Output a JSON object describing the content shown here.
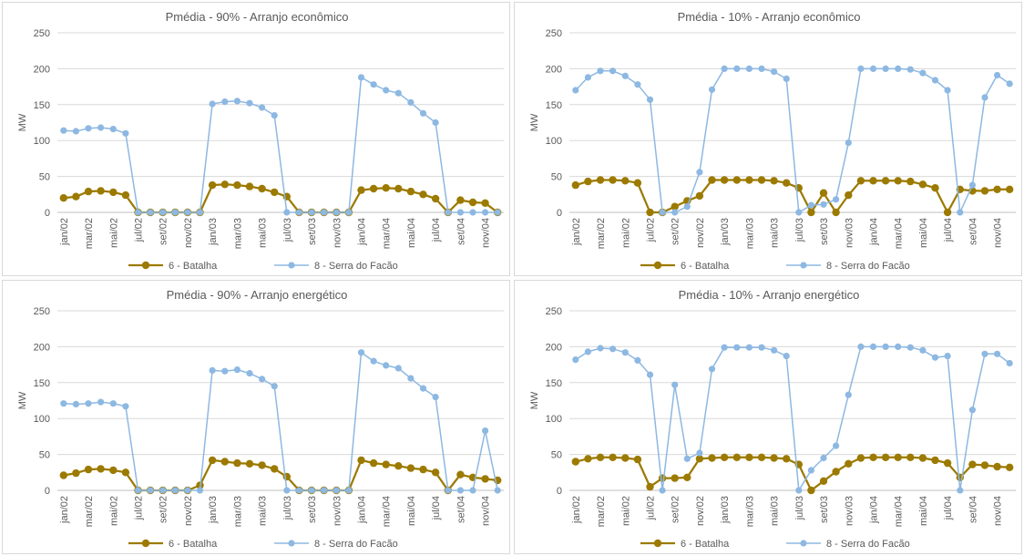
{
  "chart_data": [
    {
      "type": "line",
      "title": "Pmédia - 90% - Arranjo econômico",
      "xlabel": "",
      "ylabel": "MW",
      "ylim": [
        0,
        250
      ],
      "yticks": [
        0,
        50,
        100,
        150,
        200,
        250
      ],
      "grid": true,
      "legend": "bottom",
      "x": [
        "jan/02",
        "fev/02",
        "mar/02",
        "abr/02",
        "mai/02",
        "jun/02",
        "jul/02",
        "ago/02",
        "set/02",
        "out/02",
        "nov/02",
        "dez/02",
        "jan/03",
        "fev/03",
        "mar/03",
        "abr/03",
        "mai/03",
        "jun/03",
        "jul/03",
        "ago/03",
        "set/03",
        "out/03",
        "nov/03",
        "dez/03",
        "jan/04",
        "fev/04",
        "mar/04",
        "abr/04",
        "mai/04",
        "jun/04",
        "jul/04",
        "ago/04",
        "set/04",
        "out/04",
        "nov/04",
        "dez/04"
      ],
      "xticks": [
        "jan/02",
        "mar/02",
        "mai/02",
        "jul/02",
        "set/02",
        "nov/02",
        "jan/03",
        "mar/03",
        "mai/03",
        "jul/03",
        "set/03",
        "nov/03",
        "jan/04",
        "mar/04",
        "mai/04",
        "jul/04",
        "set/04",
        "nov/04"
      ],
      "series": [
        {
          "name": "6 - Batalha",
          "color": "#9c7a00",
          "values": [
            20,
            22,
            29,
            30,
            28,
            24,
            0,
            0,
            0,
            0,
            0,
            0,
            38,
            39,
            38,
            36,
            33,
            28,
            22,
            0,
            0,
            0,
            0,
            0,
            31,
            33,
            34,
            33,
            29,
            25,
            19,
            0,
            17,
            14,
            13,
            0
          ]
        },
        {
          "name": "8 - Serra do Facão",
          "color": "#8db8e2",
          "values": [
            114,
            113,
            117,
            118,
            116,
            110,
            0,
            0,
            0,
            0,
            0,
            0,
            151,
            154,
            155,
            152,
            146,
            135,
            0,
            0,
            0,
            0,
            0,
            0,
            188,
            178,
            170,
            166,
            153,
            138,
            125,
            0,
            0,
            0,
            0,
            0
          ]
        }
      ]
    },
    {
      "type": "line",
      "title": "Pmédia - 10% - Arranjo econômico",
      "xlabel": "",
      "ylabel": "MW",
      "ylim": [
        0,
        250
      ],
      "yticks": [
        0,
        50,
        100,
        150,
        200,
        250
      ],
      "grid": true,
      "legend": "bottom",
      "x": [
        "jan/02",
        "fev/02",
        "mar/02",
        "abr/02",
        "mai/02",
        "jun/02",
        "jul/02",
        "ago/02",
        "set/02",
        "out/02",
        "nov/02",
        "dez/02",
        "jan/03",
        "fev/03",
        "mar/03",
        "abr/03",
        "mai/03",
        "jun/03",
        "jul/03",
        "ago/03",
        "set/03",
        "out/03",
        "nov/03",
        "dez/03",
        "jan/04",
        "fev/04",
        "mar/04",
        "abr/04",
        "mai/04",
        "jun/04",
        "jul/04",
        "ago/04",
        "set/04",
        "out/04",
        "nov/04",
        "dez/04"
      ],
      "xticks": [
        "jan/02",
        "mar/02",
        "mai/02",
        "jul/02",
        "set/02",
        "nov/02",
        "jan/03",
        "mar/03",
        "mai/03",
        "jul/03",
        "set/03",
        "nov/03",
        "jan/04",
        "mar/04",
        "mai/04",
        "jul/04",
        "set/04",
        "nov/04"
      ],
      "series": [
        {
          "name": "6 - Batalha",
          "color": "#9c7a00",
          "values": [
            38,
            43,
            45,
            45,
            44,
            41,
            0,
            0,
            8,
            16,
            23,
            45,
            45,
            45,
            45,
            45,
            44,
            41,
            34,
            0,
            27,
            0,
            24,
            44,
            44,
            44,
            44,
            43,
            39,
            34,
            0,
            32,
            30,
            30,
            32,
            32
          ]
        },
        {
          "name": "8 - Serra do Facão",
          "color": "#8db8e2",
          "values": [
            170,
            188,
            197,
            197,
            190,
            178,
            157,
            0,
            0,
            8,
            56,
            171,
            200,
            200,
            200,
            200,
            196,
            186,
            0,
            10,
            11,
            18,
            97,
            200,
            200,
            200,
            200,
            199,
            194,
            184,
            170,
            0,
            38,
            160,
            191,
            179
          ]
        }
      ]
    },
    {
      "type": "line",
      "title": "Pmédia - 90% - Arranjo energético",
      "xlabel": "",
      "ylabel": "MW",
      "ylim": [
        0,
        250
      ],
      "yticks": [
        0,
        50,
        100,
        150,
        200,
        250
      ],
      "grid": true,
      "legend": "bottom",
      "x": [
        "jan/02",
        "fev/02",
        "mar/02",
        "abr/02",
        "mai/02",
        "jun/02",
        "jul/02",
        "ago/02",
        "set/02",
        "out/02",
        "nov/02",
        "dez/02",
        "jan/03",
        "fev/03",
        "mar/03",
        "abr/03",
        "mai/03",
        "jun/03",
        "jul/03",
        "ago/03",
        "set/03",
        "out/03",
        "nov/03",
        "dez/03",
        "jan/04",
        "fev/04",
        "mar/04",
        "abr/04",
        "mai/04",
        "jun/04",
        "jul/04",
        "ago/04",
        "set/04",
        "out/04",
        "nov/04",
        "dez/04"
      ],
      "xticks": [
        "jan/02",
        "mar/02",
        "mai/02",
        "jul/02",
        "set/02",
        "nov/02",
        "jan/03",
        "mar/03",
        "mai/03",
        "jul/03",
        "set/03",
        "nov/03",
        "jan/04",
        "mar/04",
        "mai/04",
        "jul/04",
        "set/04",
        "nov/04"
      ],
      "series": [
        {
          "name": "6 - Batalha",
          "color": "#9c7a00",
          "values": [
            21,
            24,
            29,
            30,
            28,
            25,
            0,
            0,
            0,
            0,
            0,
            7,
            42,
            40,
            38,
            37,
            35,
            30,
            19,
            0,
            0,
            0,
            0,
            0,
            42,
            38,
            36,
            34,
            31,
            29,
            25,
            0,
            22,
            18,
            16,
            14
          ]
        },
        {
          "name": "8 - Serra do Facão",
          "color": "#8db8e2",
          "values": [
            121,
            120,
            121,
            123,
            121,
            117,
            0,
            0,
            0,
            0,
            0,
            0,
            167,
            166,
            168,
            163,
            155,
            145,
            0,
            0,
            0,
            0,
            0,
            0,
            192,
            180,
            174,
            170,
            156,
            142,
            130,
            0,
            0,
            0,
            83,
            0
          ]
        }
      ]
    },
    {
      "type": "line",
      "title": "Pmédia - 10% - Arranjo energético",
      "xlabel": "",
      "ylabel": "MW",
      "ylim": [
        0,
        250
      ],
      "yticks": [
        0,
        50,
        100,
        150,
        200,
        250
      ],
      "grid": true,
      "legend": "bottom",
      "x": [
        "jan/02",
        "fev/02",
        "mar/02",
        "abr/02",
        "mai/02",
        "jun/02",
        "jul/02",
        "ago/02",
        "set/02",
        "out/02",
        "nov/02",
        "dez/02",
        "jan/03",
        "fev/03",
        "mar/03",
        "abr/03",
        "mai/03",
        "jun/03",
        "jul/03",
        "ago/03",
        "set/03",
        "out/03",
        "nov/03",
        "dez/03",
        "jan/04",
        "fev/04",
        "mar/04",
        "abr/04",
        "mai/04",
        "jun/04",
        "jul/04",
        "ago/04",
        "set/04",
        "out/04",
        "nov/04",
        "dez/04"
      ],
      "xticks": [
        "jan/02",
        "mar/02",
        "mai/02",
        "jul/02",
        "set/02",
        "nov/02",
        "jan/03",
        "mar/03",
        "mai/03",
        "jul/03",
        "set/03",
        "nov/03",
        "jan/04",
        "mar/04",
        "mai/04",
        "jul/04",
        "set/04",
        "nov/04"
      ],
      "series": [
        {
          "name": "6 - Batalha",
          "color": "#9c7a00",
          "values": [
            40,
            44,
            46,
            46,
            45,
            43,
            5,
            17,
            17,
            18,
            44,
            45,
            46,
            46,
            46,
            46,
            45,
            44,
            36,
            0,
            13,
            26,
            37,
            45,
            46,
            46,
            46,
            46,
            45,
            42,
            38,
            18,
            36,
            35,
            33,
            32
          ]
        },
        {
          "name": "8 - Serra do Facão",
          "color": "#8db8e2",
          "values": [
            182,
            193,
            198,
            197,
            192,
            181,
            161,
            0,
            147,
            44,
            52,
            169,
            199,
            199,
            199,
            199,
            195,
            187,
            0,
            28,
            45,
            62,
            133,
            200,
            200,
            200,
            200,
            199,
            195,
            185,
            187,
            0,
            112,
            190,
            190,
            177
          ]
        }
      ]
    }
  ]
}
